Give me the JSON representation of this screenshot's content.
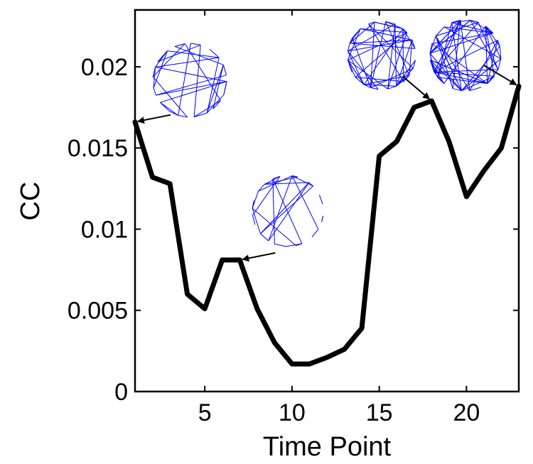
{
  "chart_data": {
    "type": "line",
    "title": "",
    "xlabel": "Time Point",
    "ylabel": "CC",
    "xlim": [
      1,
      23
    ],
    "ylim": [
      0,
      0.0235
    ],
    "xticks": [
      5,
      10,
      15,
      20
    ],
    "xtick_labels": [
      "5",
      "10",
      "15",
      "20"
    ],
    "yticks": [
      0,
      0.005,
      0.01,
      0.015,
      0.02
    ],
    "ytick_labels": [
      "0",
      "0.005",
      "0.01",
      "0.015",
      "0.02"
    ],
    "grid": false,
    "series": [
      {
        "x": [
          1,
          2,
          3,
          4,
          5,
          6,
          7,
          8,
          9,
          10,
          11,
          12,
          13,
          14,
          15,
          16,
          17,
          18,
          19,
          20,
          21,
          22,
          23
        ],
        "values": [
          0.0166,
          0.0132,
          0.0128,
          0.006,
          0.0051,
          0.0081,
          0.0081,
          0.0051,
          0.003,
          0.0017,
          0.0017,
          0.0021,
          0.0026,
          0.0039,
          0.0145,
          0.0154,
          0.0175,
          0.0179,
          0.0154,
          0.012,
          0.0136,
          0.015,
          0.0188
        ],
        "color": "#000000"
      }
    ],
    "annotations": [
      {
        "type": "network-inset",
        "points_to": {
          "x": 1,
          "y": 0.0166
        },
        "icon": "network-graph-icon",
        "color": "#0000ff"
      },
      {
        "type": "network-inset",
        "points_to": {
          "x": 7,
          "y": 0.0081
        },
        "icon": "network-graph-icon",
        "color": "#0000ff"
      },
      {
        "type": "network-inset",
        "points_to": {
          "x": 18,
          "y": 0.0179
        },
        "icon": "network-graph-icon",
        "color": "#0000ff"
      },
      {
        "type": "network-inset",
        "points_to": {
          "x": 23,
          "y": 0.0188
        },
        "icon": "network-graph-icon",
        "color": "#0000ff"
      }
    ]
  }
}
